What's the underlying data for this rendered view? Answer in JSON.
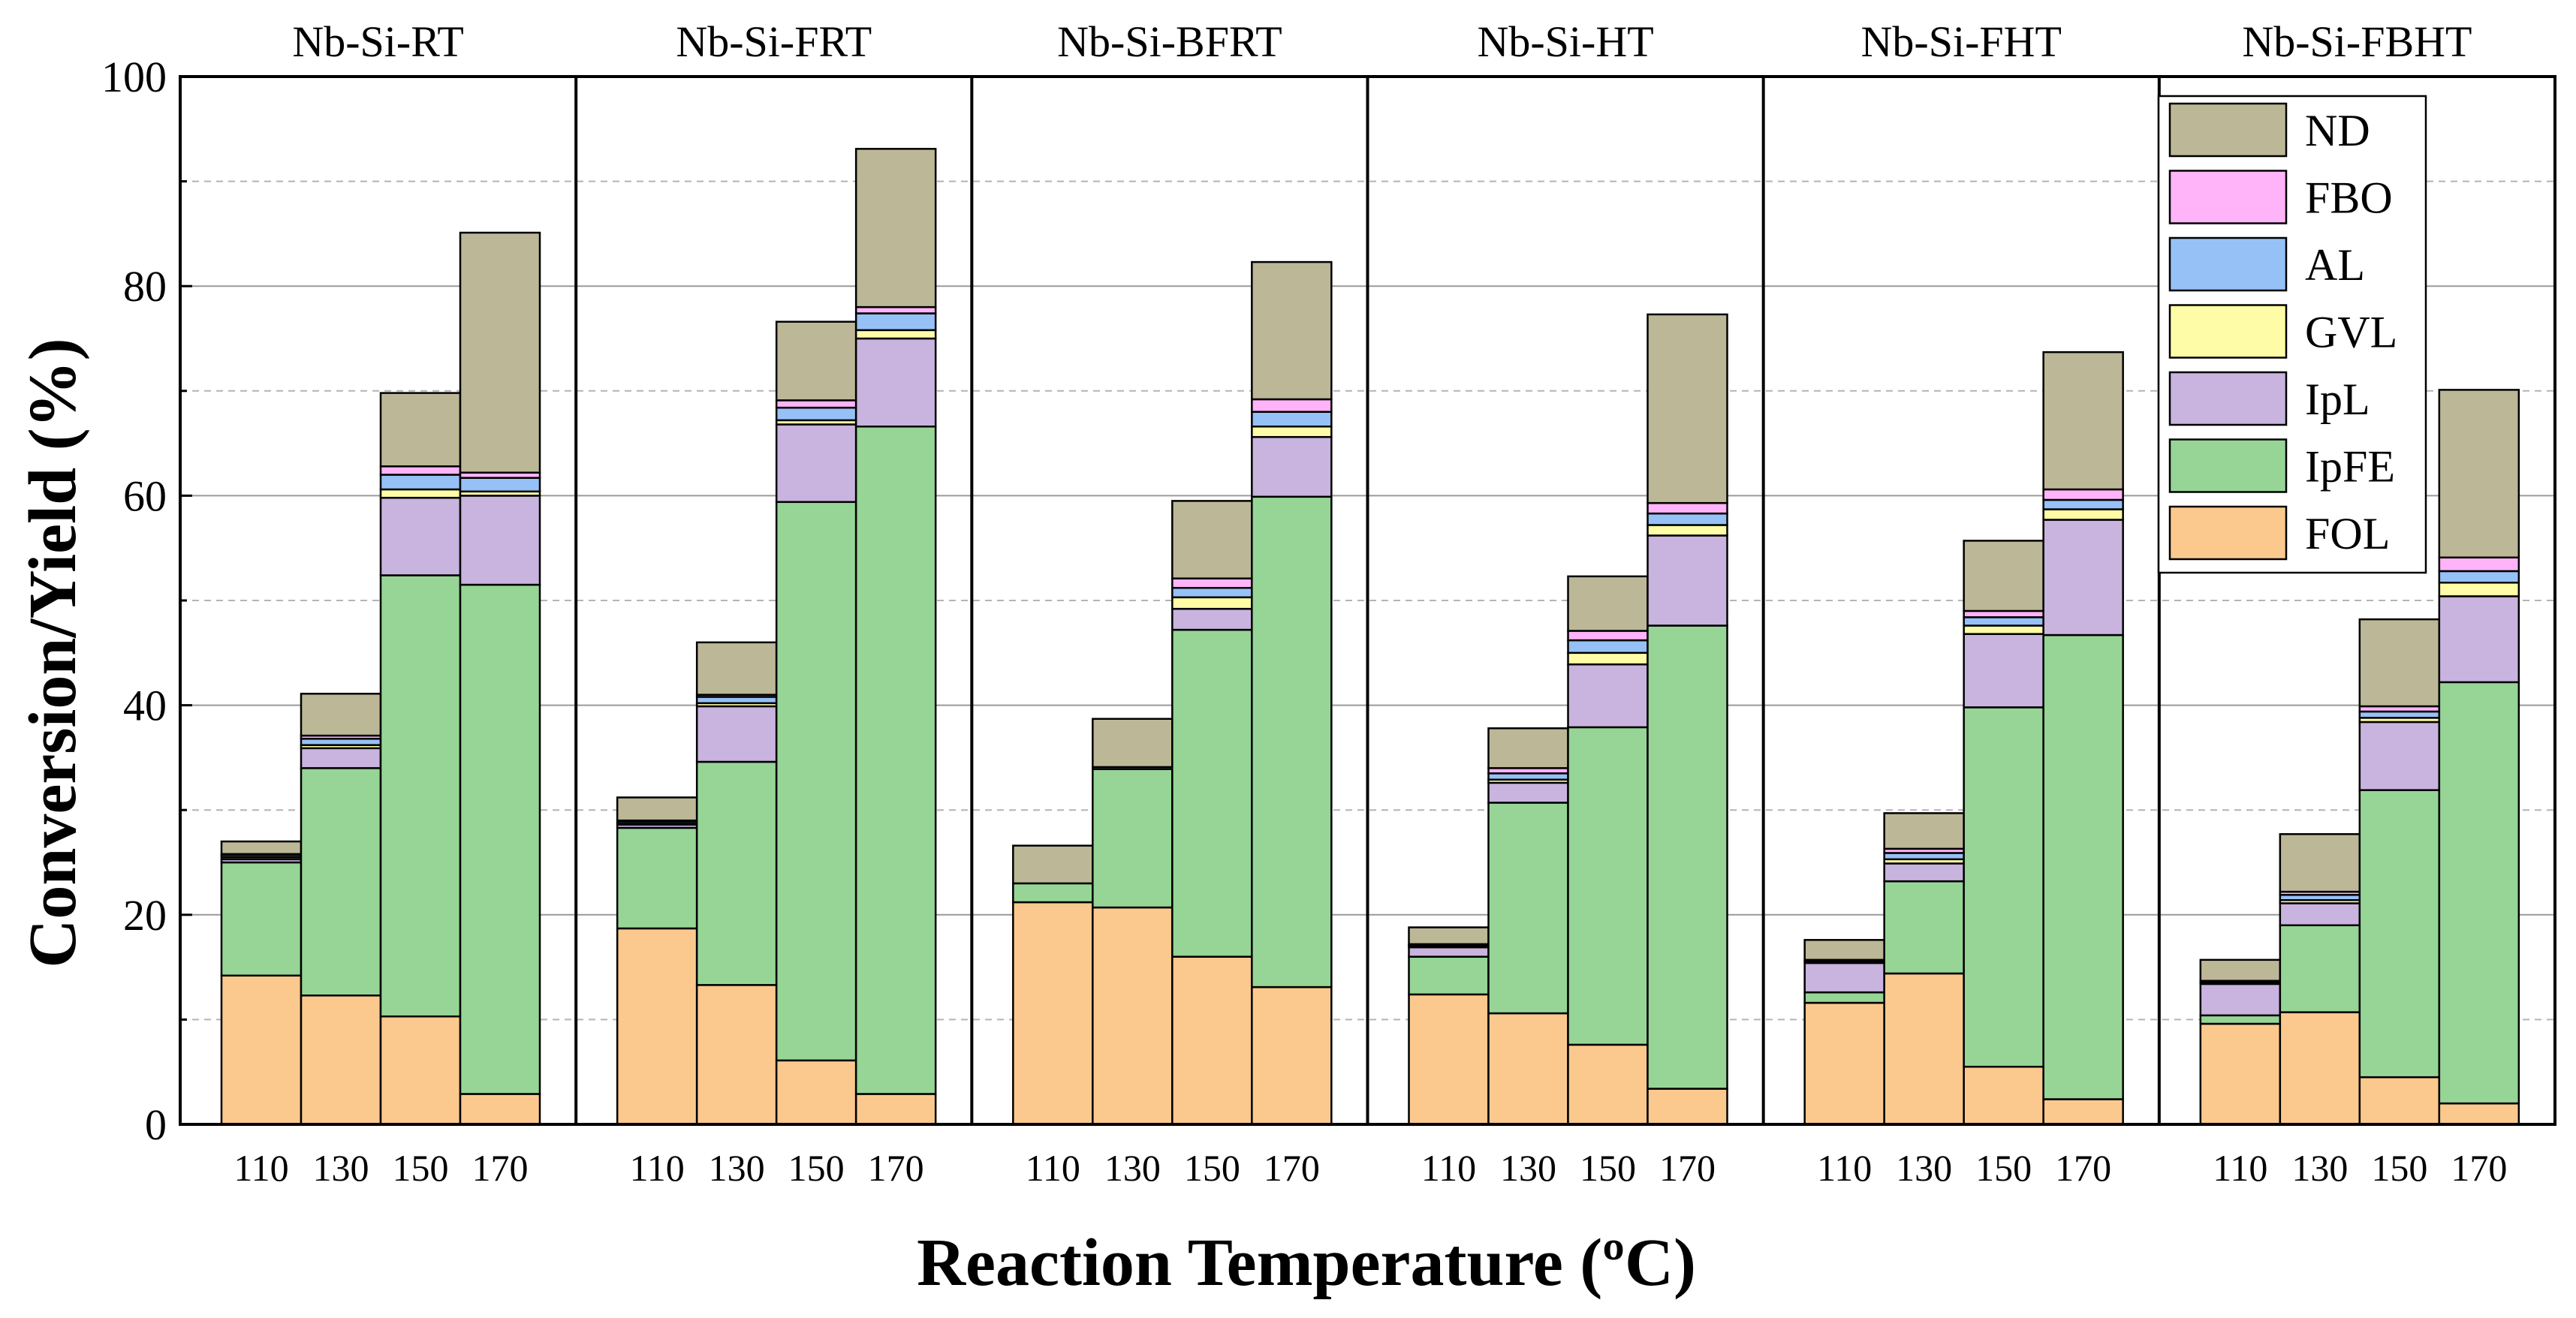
{
  "chart_data": {
    "type": "bar",
    "stacked": true,
    "xlabel": "Reaction Temperature (ºC)",
    "ylabel": "Conversion/Yield (%)",
    "ylim": [
      0,
      100
    ],
    "yticks": [
      0,
      20,
      40,
      60,
      80,
      100
    ],
    "ytick_labels": [
      "0",
      "20",
      "40",
      "60",
      "80",
      "100"
    ],
    "grid": "dashed horizontal every 10",
    "legend_position": "top-right",
    "categories": [
      "110",
      "130",
      "150",
      "170"
    ],
    "stack_order": [
      "FOL",
      "IpFE",
      "IpL",
      "GVL",
      "AL",
      "FBO",
      "ND"
    ],
    "legend": [
      "ND",
      "FBO",
      "AL",
      "GVL",
      "IpL",
      "IpFE",
      "FOL"
    ],
    "colors": {
      "FOL": "#fbc98e",
      "IpFE": "#96d596",
      "IpL": "#c8b4de",
      "GVL": "#fefca6",
      "AL": "#96c1f6",
      "FBO": "#ffb3f9",
      "ND": "#bcb897"
    },
    "panels": [
      {
        "title": "Nb-Si-RT",
        "series": {
          "FOL": [
            14.2,
            12.3,
            10.3,
            2.9
          ],
          "IpFE": [
            10.8,
            21.7,
            42.1,
            48.6
          ],
          "IpL": [
            0.3,
            1.9,
            7.4,
            8.5
          ],
          "GVL": [
            0.2,
            0.3,
            0.8,
            0.4
          ],
          "AL": [
            0.2,
            0.6,
            1.4,
            1.3
          ],
          "FBO": [
            0.1,
            0.3,
            0.8,
            0.5
          ],
          "ND": [
            1.2,
            4.0,
            7.0,
            22.9
          ]
        }
      },
      {
        "title": "Nb-Si-FRT",
        "series": {
          "FOL": [
            18.7,
            13.3,
            6.1,
            2.9
          ],
          "IpFE": [
            9.6,
            21.3,
            53.3,
            63.7
          ],
          "IpL": [
            0.3,
            5.3,
            7.4,
            8.4
          ],
          "GVL": [
            0.1,
            0.3,
            0.4,
            0.8
          ],
          "AL": [
            0.2,
            0.6,
            1.2,
            1.6
          ],
          "FBO": [
            0.1,
            0.2,
            0.7,
            0.6
          ],
          "ND": [
            2.2,
            5.0,
            7.5,
            15.1
          ]
        }
      },
      {
        "title": "Nb-Si-BFRT",
        "series": {
          "FOL": [
            21.2,
            20.7,
            16.0,
            13.1
          ],
          "IpFE": [
            1.8,
            13.2,
            31.2,
            46.8
          ],
          "IpL": [
            0.0,
            0.2,
            2.0,
            5.7
          ],
          "GVL": [
            0.0,
            0.0,
            1.1,
            1.0
          ],
          "AL": [
            0.0,
            0.0,
            0.9,
            1.4
          ],
          "FBO": [
            0.0,
            0.0,
            0.9,
            1.2
          ],
          "ND": [
            3.6,
            4.6,
            7.4,
            13.1
          ]
        }
      },
      {
        "title": "Nb-Si-HT",
        "series": {
          "FOL": [
            12.4,
            10.6,
            7.6,
            3.4
          ],
          "IpFE": [
            3.6,
            20.1,
            30.3,
            44.2
          ],
          "IpL": [
            0.9,
            1.9,
            6.0,
            8.6
          ],
          "GVL": [
            0.1,
            0.3,
            1.1,
            1.0
          ],
          "AL": [
            0.1,
            0.6,
            1.2,
            1.1
          ],
          "FBO": [
            0.1,
            0.5,
            0.9,
            1.0
          ],
          "ND": [
            1.6,
            3.8,
            5.2,
            18.0
          ]
        }
      },
      {
        "title": "Nb-Si-FHT",
        "series": {
          "FOL": [
            11.6,
            14.4,
            5.5,
            2.4
          ],
          "IpFE": [
            1.0,
            8.8,
            34.3,
            44.3
          ],
          "IpL": [
            2.8,
            1.7,
            7.0,
            11.0
          ],
          "GVL": [
            0.1,
            0.4,
            0.8,
            1.0
          ],
          "AL": [
            0.1,
            0.6,
            0.8,
            0.9
          ],
          "FBO": [
            0.1,
            0.4,
            0.6,
            1.0
          ],
          "ND": [
            1.9,
            3.4,
            6.7,
            13.1
          ]
        }
      },
      {
        "title": "Nb-Si-FBHT",
        "series": {
          "FOL": [
            9.6,
            10.7,
            4.5,
            2.0
          ],
          "IpFE": [
            0.8,
            8.3,
            27.4,
            40.2
          ],
          "IpL": [
            3.0,
            2.1,
            6.5,
            8.2
          ],
          "GVL": [
            0.1,
            0.3,
            0.4,
            1.3
          ],
          "AL": [
            0.1,
            0.5,
            0.6,
            1.1
          ],
          "FBO": [
            0.1,
            0.3,
            0.5,
            1.3
          ],
          "ND": [
            2.0,
            5.5,
            8.3,
            16.0
          ]
        }
      }
    ]
  }
}
